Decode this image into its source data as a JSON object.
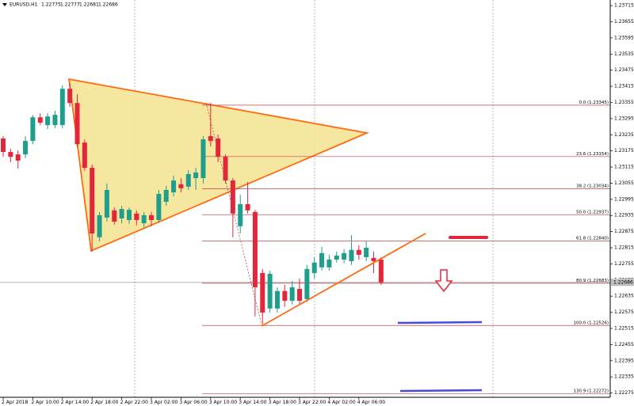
{
  "chart_data": {
    "type": "candlestick",
    "title": "EURUSD,H1",
    "header_values": [
      1.22775,
      1.22777,
      1.22681,
      1.22686
    ],
    "current_price": 1.22686,
    "categories": [
      "2 Apr 2018",
      null,
      null,
      null,
      "2 Apr 10:00",
      null,
      null,
      null,
      "2 Apr 14:00",
      null,
      null,
      null,
      "2 Apr 18:00",
      null,
      null,
      null,
      "2 Apr 22:00",
      null,
      null,
      null,
      "3 Apr 02:00",
      null,
      null,
      null,
      "3 Apr 06:00",
      null,
      null,
      null,
      "3 Apr 10:00",
      null,
      null,
      null,
      "3 Apr 14:00",
      null,
      null,
      null,
      "3 Apr 18:00",
      null,
      null,
      null,
      "3 Apr 22:00",
      null,
      null,
      null,
      "4 Apr 02:00",
      null,
      null,
      null,
      "4 Apr 06:00",
      null,
      null,
      null
    ],
    "open": [
      1.23221,
      1.23171,
      1.23162,
      1.23162,
      1.23212,
      1.233,
      1.23271,
      1.23271,
      1.23271,
      1.23406,
      1.23353,
      1.23206,
      1.23112,
      1.22854,
      1.22927,
      1.22954,
      1.22924,
      1.22918,
      1.22942,
      1.22906,
      1.22936,
      1.22918,
      1.22986,
      1.23021,
      1.23051,
      1.23042,
      1.23074,
      1.23074,
      1.2323,
      1.23221,
      1.23153,
      1.23065,
      1.22895,
      1.22977,
      1.22948,
      1.22721,
      1.22589,
      1.22589,
      1.22654,
      1.22618,
      1.22662,
      1.22624,
      1.22721,
      1.22742,
      1.22742,
      1.22771,
      1.22771,
      1.22765,
      1.22807,
      1.2278,
      1.22777,
      1.22771
    ],
    "high": [
      1.2323,
      1.23183,
      1.23177,
      1.2323,
      1.23309,
      1.23315,
      1.23315,
      1.23324,
      1.23418,
      1.23427,
      1.23386,
      1.23218,
      1.23124,
      1.22948,
      1.23054,
      1.22965,
      1.22971,
      1.22965,
      1.22954,
      1.22948,
      1.22948,
      1.2303,
      1.23045,
      1.23083,
      1.23074,
      1.23103,
      1.23112,
      1.2323,
      1.23353,
      1.23236,
      1.23162,
      1.23074,
      1.23012,
      1.23059,
      1.22956,
      1.22736,
      1.2273,
      1.22668,
      1.22677,
      1.22692,
      1.22701,
      1.22751,
      1.2278,
      1.22818,
      1.22789,
      1.22801,
      1.2281,
      1.22862,
      1.22824,
      1.22839,
      1.22801,
      1.2278
    ],
    "low": [
      1.23153,
      1.23133,
      1.23109,
      1.23148,
      1.232,
      1.23271,
      1.23256,
      1.23259,
      1.23259,
      1.23339,
      1.23189,
      1.231,
      1.22801,
      1.22839,
      1.22912,
      1.22901,
      1.22906,
      1.22904,
      1.22898,
      1.22889,
      1.22895,
      1.22906,
      1.22971,
      1.23006,
      1.23021,
      1.2303,
      1.2303,
      1.23054,
      1.23192,
      1.23133,
      1.23054,
      1.22854,
      1.22868,
      1.22942,
      1.2256,
      1.2253,
      1.22574,
      1.22574,
      1.22595,
      1.22604,
      1.22604,
      1.22613,
      1.22701,
      1.2273,
      1.2273,
      1.2276,
      1.22757,
      1.22751,
      1.22771,
      1.22765,
      1.22721,
      1.22677
    ],
    "close": [
      1.23171,
      1.23153,
      1.23139,
      1.23212,
      1.233,
      1.2328,
      1.23303,
      1.23309,
      1.23406,
      1.23353,
      1.232,
      1.23112,
      1.22868,
      1.22936,
      1.2303,
      1.22912,
      1.22959,
      1.22956,
      1.22918,
      1.22936,
      1.22918,
      1.23015,
      1.2303,
      1.23065,
      1.23036,
      1.23089,
      1.23095,
      1.23218,
      1.23212,
      1.23153,
      1.23065,
      1.22942,
      1.22977,
      1.22954,
      1.22668,
      1.22574,
      1.22718,
      1.22654,
      1.22618,
      1.22668,
      1.22618,
      1.22736,
      1.2276,
      1.22795,
      1.22771,
      1.22786,
      1.22795,
      1.22807,
      1.22789,
      1.22815,
      1.22765,
      1.22686
    ],
    "up_color": "#1f9e8c",
    "down_color": "#e3263a",
    "ylim": [
      1.22259,
      1.23736
    ],
    "yticks": [
      1.22275,
      1.22335,
      1.22395,
      1.22455,
      1.22515,
      1.22575,
      1.22635,
      1.22695,
      1.22755,
      1.22815,
      1.22875,
      1.22935,
      1.22995,
      1.23055,
      1.23115,
      1.23175,
      1.23235,
      1.23295,
      1.23355,
      1.23415,
      1.23475,
      1.23535,
      1.23595,
      1.23655,
      1.23715
    ],
    "fibo_color": "#b5474b",
    "fibo": [
      {
        "price": 1.23345,
        "label": "0.0 (1.23345)"
      },
      {
        "price": 1.23154,
        "label": "23.6 (1.23154)"
      },
      {
        "price": 1.23034,
        "label": "38.2 (1.23034)"
      },
      {
        "price": 1.22937,
        "label": "50.0 (1.22937)"
      },
      {
        "price": 1.2284,
        "label": "61.8 (1.22840)"
      },
      {
        "price": 1.22683,
        "label": "80.9 (1.22683)"
      },
      {
        "price": 1.22526,
        "label": "100.0 (1.22526)"
      },
      {
        "price": 1.22272,
        "label": "130.9 (1.22272)"
      }
    ]
  }
}
